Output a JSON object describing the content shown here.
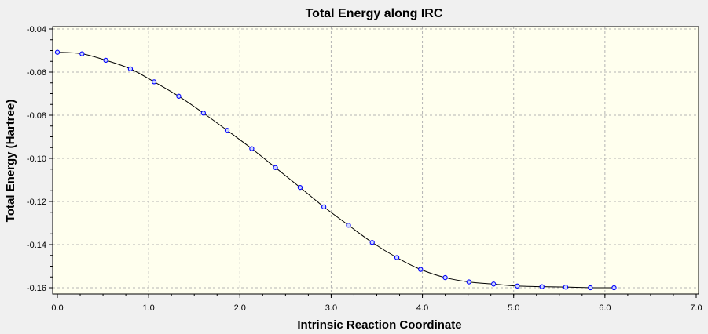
{
  "chart_data": {
    "type": "line",
    "title": "Total Energy along IRC",
    "xlabel": "Intrinsic Reaction Coordinate",
    "ylabel": "Total Energy (Hartree)",
    "xlim": [
      0.0,
      7.0
    ],
    "ylim": [
      -0.16,
      -0.04
    ],
    "xticks": [
      0.0,
      1.0,
      2.0,
      3.0,
      4.0,
      5.0,
      6.0,
      7.0
    ],
    "xtick_labels": [
      "0.0",
      "1.0",
      "2.0",
      "3.0",
      "4.0",
      "5.0",
      "6.0",
      "7.0"
    ],
    "yticks": [
      -0.04,
      -0.06,
      -0.08,
      -0.1,
      -0.12,
      -0.14,
      -0.16
    ],
    "ytick_labels": [
      "-0.04",
      "-0.06",
      "-0.08",
      "-0.10",
      "-0.12",
      "-0.14",
      "-0.16"
    ],
    "grid": true,
    "plot_background": "#ffffee",
    "line_color": "#000000",
    "marker_color": "#0000ff",
    "series": [
      {
        "x": [
          0.0,
          0.27,
          0.53,
          0.8,
          1.06,
          1.33,
          1.6,
          1.86,
          2.13,
          2.39,
          2.66,
          2.92,
          3.19,
          3.45,
          3.72,
          3.98,
          4.25,
          4.51,
          4.78,
          5.04,
          5.31,
          5.57,
          5.84,
          6.1
        ],
        "y": [
          -0.0508,
          -0.0515,
          -0.0545,
          -0.0585,
          -0.0645,
          -0.0712,
          -0.079,
          -0.087,
          -0.0955,
          -0.1043,
          -0.1135,
          -0.1225,
          -0.131,
          -0.139,
          -0.146,
          -0.1515,
          -0.1553,
          -0.1573,
          -0.1583,
          -0.1592,
          -0.1595,
          -0.1597,
          -0.16,
          -0.16
        ]
      }
    ]
  }
}
